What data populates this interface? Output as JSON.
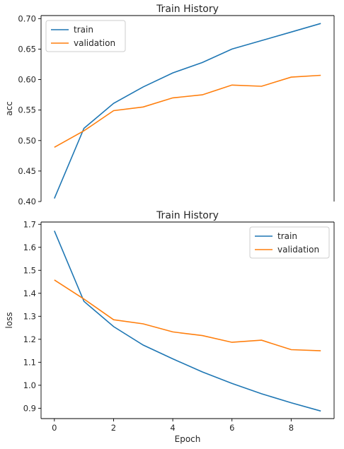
{
  "chart_data": [
    {
      "type": "line",
      "title": "Train History",
      "xlabel": "",
      "ylabel": "acc",
      "x": [
        0,
        1,
        2,
        3,
        4,
        5,
        6,
        7,
        8,
        9
      ],
      "xlim": [
        -0.45,
        9.45
      ],
      "ylim": [
        0.4,
        0.705
      ],
      "yticks": [
        "0.40",
        "0.45",
        "0.50",
        "0.55",
        "0.60",
        "0.65",
        "0.70"
      ],
      "grid": false,
      "legend_position": "top-left",
      "series": [
        {
          "name": "train",
          "color": "#1f77b4",
          "values": [
            0.405,
            0.52,
            0.561,
            0.588,
            0.611,
            0.628,
            0.65,
            0.664,
            0.678,
            0.692
          ]
        },
        {
          "name": "validation",
          "color": "#ff7f0e",
          "values": [
            0.489,
            0.516,
            0.549,
            0.555,
            0.57,
            0.575,
            0.591,
            0.589,
            0.604,
            0.607
          ]
        }
      ]
    },
    {
      "type": "line",
      "title": "Train History",
      "xlabel": "Epoch",
      "ylabel": "loss",
      "x": [
        0,
        1,
        2,
        3,
        4,
        5,
        6,
        7,
        8,
        9
      ],
      "xlim": [
        -0.45,
        9.45
      ],
      "ylim": [
        0.855,
        1.71
      ],
      "xticks": [
        "0",
        "2",
        "4",
        "6",
        "8"
      ],
      "yticks": [
        "0.9",
        "1.0",
        "1.1",
        "1.2",
        "1.3",
        "1.4",
        "1.5",
        "1.6",
        "1.7"
      ],
      "grid": false,
      "legend_position": "top-right",
      "series": [
        {
          "name": "train",
          "color": "#1f77b4",
          "values": [
            1.672,
            1.365,
            1.255,
            1.175,
            1.115,
            1.058,
            1.008,
            0.963,
            0.924,
            0.888
          ]
        },
        {
          "name": "validation",
          "color": "#ff7f0e",
          "values": [
            1.458,
            1.375,
            1.285,
            1.267,
            1.232,
            1.216,
            1.187,
            1.196,
            1.155,
            1.15
          ]
        }
      ]
    }
  ]
}
